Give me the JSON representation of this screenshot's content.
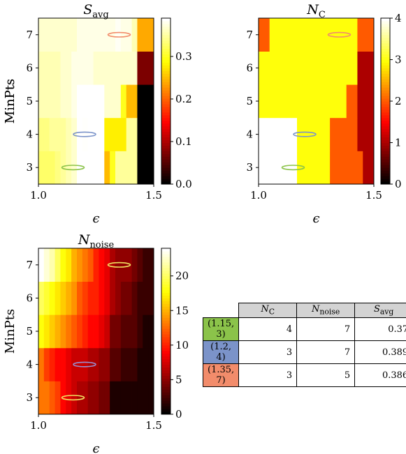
{
  "chart_data": [
    {
      "type": "heatmap",
      "title": "S_avg",
      "title_main": "S",
      "title_sub": "avg",
      "xlabel": "ϵ",
      "ylabel": "MinPts",
      "x_ticks": [
        "1.0",
        "1.5"
      ],
      "y_ticks": [
        "3",
        "4",
        "5",
        "6",
        "7"
      ],
      "xlim": [
        1.0,
        1.5
      ],
      "ylim": [
        2.5,
        7.5
      ],
      "colormap": "hot",
      "colorbar_ticks": [
        "0.0",
        "0.1",
        "0.2",
        "0.3"
      ],
      "colorbar_range": [
        0.0,
        0.39
      ],
      "x_values": [
        1.0,
        1.025,
        1.05,
        1.075,
        1.1,
        1.125,
        1.15,
        1.175,
        1.2,
        1.225,
        1.25,
        1.275,
        1.3,
        1.325,
        1.35,
        1.375,
        1.4,
        1.425,
        1.45,
        1.475,
        1.5
      ],
      "y_values": [
        3,
        4,
        5,
        6,
        7
      ],
      "grid": [
        [
          0.33,
          0.33,
          0.33,
          0.34,
          0.35,
          0.36,
          0.37,
          0.39,
          0.39,
          0.39,
          0.39,
          0.39,
          0.25,
          0.3,
          0.35,
          0.35,
          0.35,
          0.35,
          0.0,
          0.0,
          0.0
        ],
        [
          0.34,
          0.34,
          0.35,
          0.35,
          0.35,
          0.36,
          0.37,
          0.39,
          0.389,
          0.39,
          0.39,
          0.39,
          0.28,
          0.28,
          0.28,
          0.28,
          0.35,
          0.35,
          0.0,
          0.0,
          0.0
        ],
        [
          0.36,
          0.36,
          0.36,
          0.36,
          0.37,
          0.37,
          0.38,
          0.39,
          0.39,
          0.39,
          0.39,
          0.39,
          0.37,
          0.37,
          0.37,
          0.3,
          0.25,
          0.25,
          0.0,
          0.0,
          0.0
        ],
        [
          0.36,
          0.36,
          0.36,
          0.36,
          0.37,
          0.37,
          0.38,
          0.38,
          0.38,
          0.38,
          0.37,
          0.37,
          0.37,
          0.37,
          0.37,
          0.37,
          0.37,
          0.37,
          0.07,
          0.07,
          0.07
        ],
        [
          0.37,
          0.37,
          0.37,
          0.37,
          0.37,
          0.37,
          0.37,
          0.38,
          0.38,
          0.38,
          0.38,
          0.38,
          0.38,
          0.38,
          0.386,
          0.38,
          0.38,
          0.36,
          0.24,
          0.24,
          0.24
        ]
      ],
      "markers": [
        {
          "x": 1.15,
          "y": 3,
          "color": "#8bc34a"
        },
        {
          "x": 1.2,
          "y": 4,
          "color": "#7b93c9"
        },
        {
          "x": 1.35,
          "y": 7,
          "color": "#f28c6b"
        }
      ]
    },
    {
      "type": "heatmap",
      "title": "N_C",
      "title_main": "N",
      "title_sub": "C",
      "xlabel": "ϵ",
      "ylabel": "MinPts",
      "x_ticks": [
        "1.0",
        "1.5"
      ],
      "y_ticks": [
        "3",
        "4",
        "5",
        "6",
        "7"
      ],
      "xlim": [
        1.0,
        1.5
      ],
      "ylim": [
        2.5,
        7.5
      ],
      "colormap": "hot",
      "colorbar_ticks": [
        "0",
        "1",
        "2",
        "3",
        "4"
      ],
      "colorbar_range": [
        0,
        4
      ],
      "x_values": [
        1.0,
        1.025,
        1.05,
        1.075,
        1.1,
        1.125,
        1.15,
        1.175,
        1.2,
        1.225,
        1.25,
        1.275,
        1.3,
        1.325,
        1.35,
        1.375,
        1.4,
        1.425,
        1.45,
        1.475,
        1.5
      ],
      "y_values": [
        3,
        4,
        5,
        6,
        7
      ],
      "grid": [
        [
          4,
          4,
          4,
          4,
          4,
          4,
          4,
          3,
          3,
          3,
          3,
          3,
          3,
          2,
          2,
          2,
          2,
          2,
          2,
          1,
          1
        ],
        [
          4,
          4,
          4,
          4,
          4,
          4,
          4,
          3,
          3,
          3,
          3,
          3,
          3,
          2,
          2,
          2,
          2,
          2,
          1,
          1,
          1
        ],
        [
          3,
          3,
          3,
          3,
          3,
          3,
          3,
          3,
          3,
          3,
          3,
          3,
          3,
          3,
          3,
          3,
          2,
          2,
          1,
          1,
          1
        ],
        [
          3,
          3,
          3,
          3,
          3,
          3,
          3,
          3,
          3,
          3,
          3,
          3,
          3,
          3,
          3,
          3,
          3,
          3,
          1,
          1,
          1
        ],
        [
          2,
          2,
          3,
          3,
          3,
          3,
          3,
          3,
          3,
          3,
          3,
          3,
          3,
          3,
          3,
          3,
          3,
          3,
          2,
          2,
          2
        ]
      ],
      "markers": [
        {
          "x": 1.15,
          "y": 3,
          "color": "#8bc34a"
        },
        {
          "x": 1.2,
          "y": 4,
          "color": "#7b93c9"
        },
        {
          "x": 1.35,
          "y": 7,
          "color": "#f28c6b"
        }
      ]
    },
    {
      "type": "heatmap",
      "title": "N_noise",
      "title_main": "N",
      "title_sub": "noise",
      "xlabel": "ϵ",
      "ylabel": "MinPts",
      "x_ticks": [
        "1.0",
        "1.5"
      ],
      "y_ticks": [
        "3",
        "4",
        "5",
        "6",
        "7"
      ],
      "xlim": [
        1.0,
        1.5
      ],
      "ylim": [
        2.5,
        7.5
      ],
      "colormap": "hot",
      "colorbar_ticks": [
        "0",
        "5",
        "10",
        "15",
        "20"
      ],
      "colorbar_range": [
        0,
        24
      ],
      "x_values": [
        1.0,
        1.025,
        1.05,
        1.075,
        1.1,
        1.125,
        1.15,
        1.175,
        1.2,
        1.225,
        1.25,
        1.275,
        1.3,
        1.325,
        1.35,
        1.375,
        1.4,
        1.425,
        1.45,
        1.475,
        1.5
      ],
      "y_values": [
        3,
        4,
        5,
        6,
        7
      ],
      "grid": [
        [
          13,
          13,
          12,
          11,
          9,
          8,
          7,
          6,
          6,
          5,
          5,
          4,
          4,
          1,
          1,
          1,
          1,
          1,
          1,
          1,
          1
        ],
        [
          13,
          11,
          10,
          9,
          9,
          8,
          7,
          7,
          7,
          6,
          6,
          5,
          5,
          3,
          3,
          2,
          2,
          2,
          1,
          1,
          1
        ],
        [
          18,
          17,
          16,
          15,
          14,
          13,
          12,
          11,
          10,
          9,
          9,
          8,
          7,
          4,
          4,
          3,
          3,
          3,
          2,
          1,
          1
        ],
        [
          20,
          19,
          18,
          17,
          16,
          15,
          14,
          12,
          11,
          10,
          10,
          9,
          8,
          6,
          5,
          4,
          4,
          3,
          2,
          2,
          2
        ],
        [
          24,
          23,
          22,
          20,
          18,
          17,
          15,
          14,
          13,
          12,
          10,
          9,
          8,
          6,
          5,
          5,
          5,
          4,
          3,
          2,
          2
        ]
      ],
      "markers": [
        {
          "x": 1.15,
          "y": 3,
          "color": "#f0e060"
        },
        {
          "x": 1.2,
          "y": 4,
          "color": "#9a8fd0"
        },
        {
          "x": 1.35,
          "y": 7,
          "color": "#f0e060"
        }
      ]
    },
    {
      "type": "table",
      "columns": [
        {
          "main": "N",
          "sub": "C"
        },
        {
          "main": "N",
          "sub": "noise"
        },
        {
          "main": "S",
          "sub": "avg"
        }
      ],
      "rows": [
        {
          "label": "(1.15, 3)",
          "color": "#8bc34a",
          "values": [
            "4",
            "7",
            "0.37"
          ]
        },
        {
          "label": "(1.2, 4)",
          "color": "#7b93c9",
          "values": [
            "3",
            "7",
            "0.389"
          ]
        },
        {
          "label": "(1.35, 7)",
          "color": "#f28c6b",
          "values": [
            "3",
            "5",
            "0.386"
          ]
        }
      ]
    }
  ]
}
